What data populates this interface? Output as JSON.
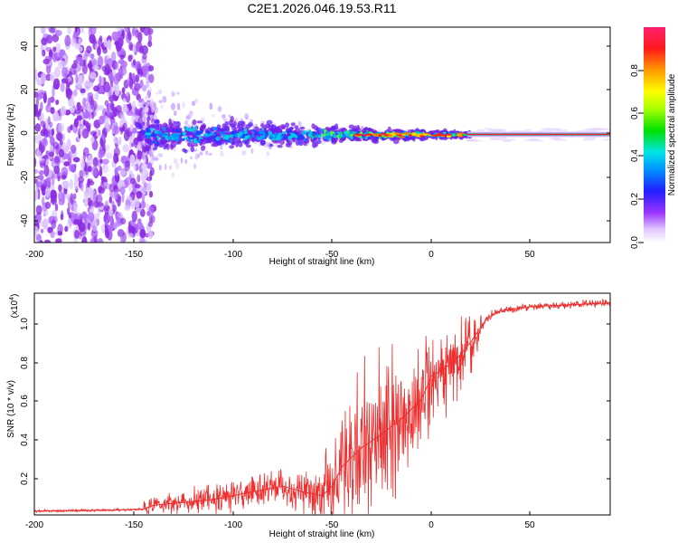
{
  "chart_data": [
    {
      "type": "heatmap",
      "title": "C2E1.2026.046.19.53.R11",
      "xlabel": "Height of straight line (km)",
      "ylabel": "Frequency (Hz)",
      "xlim": [
        -200,
        90
      ],
      "ylim": [
        -50,
        50
      ],
      "xticks": [
        "-200",
        "-150",
        "-100",
        "-50",
        "0",
        "50"
      ],
      "yticks": [
        "-40",
        "-20",
        "0",
        "20",
        "40"
      ],
      "colorbar": {
        "label": "Normalized spectral amplitude",
        "range": [
          0,
          1
        ],
        "ticks": [
          "0.0",
          "0.2",
          "0.4",
          "0.6",
          "0.8"
        ]
      },
      "features": {
        "noise_region_x": [
          -200,
          -145
        ],
        "carrier_frequency_hz": 0,
        "carrier_emerges_near_x": -60,
        "steady_carrier_from_x": 18
      }
    },
    {
      "type": "line",
      "xlabel": "Height of straight line (km)",
      "ylabel": "SNR (10 * v/v)",
      "yscale_label": "(x10",
      "yscale_exponent": "4",
      "xlim": [
        -200,
        90
      ],
      "ylim": [
        0,
        1.15
      ],
      "xticks": [
        "-200",
        "-150",
        "-100",
        "-50",
        "0",
        "50"
      ],
      "yticks": [
        "0.2",
        "0.4",
        "0.6",
        "0.8",
        "1.0"
      ],
      "series": [
        {
          "name": "SNR",
          "color": "#ee2f2f",
          "x": [
            -200,
            -160,
            -145,
            -140,
            -130,
            -110,
            -90,
            -75,
            -65,
            -55,
            -50,
            -45,
            -35,
            -25,
            -15,
            -5,
            0,
            5,
            12,
            20,
            28,
            35,
            50,
            70,
            90
          ],
          "y": [
            0.02,
            0.025,
            0.03,
            0.05,
            0.06,
            0.08,
            0.12,
            0.15,
            0.12,
            0.1,
            0.15,
            0.25,
            0.35,
            0.42,
            0.5,
            0.6,
            0.72,
            0.75,
            0.8,
            0.9,
            1.02,
            1.06,
            1.08,
            1.09,
            1.1
          ]
        }
      ]
    }
  ]
}
